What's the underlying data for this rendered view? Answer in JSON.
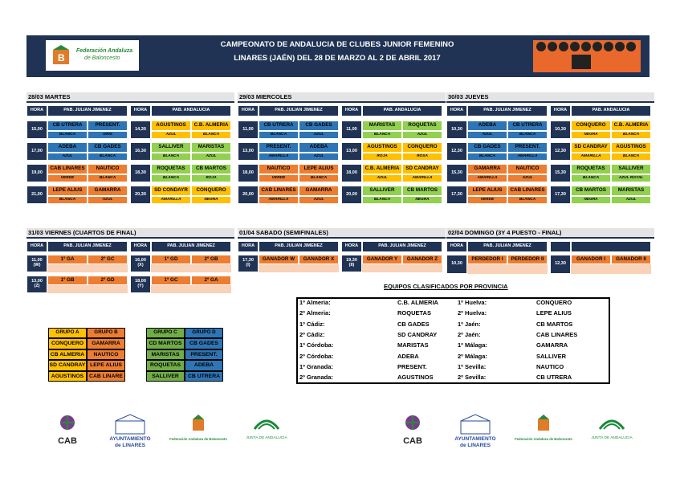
{
  "header": {
    "logo_lines": [
      "Federación Andaluza",
      "de Baloncesto"
    ],
    "title_lines": [
      "CAMPEONATO DE ANDALUCIA DE CLUBES JUNIOR FEMENINO",
      "LINARES (JAÉN) DEL 28 DE MARZO AL 2 DE ABRIL 2017"
    ]
  },
  "days": [
    {
      "label": "28/03 MARTES",
      "headers": [
        "HORA",
        "PAB. JULIAN JIMENEZ",
        "HORA",
        "PAB. ANDALUCIA"
      ],
      "slots": [
        [
          {
            "time": "15,00",
            "home": "CB UTRERA",
            "away": "PRESENT.",
            "shirts": [
              "BLANCA",
              "GRIS"
            ],
            "color": "#2e75b6"
          },
          {
            "time": "14,30",
            "home": "AGUSTINOS",
            "away": "C.B. ALMERIA",
            "shirts": [
              "AZUL",
              "BLANCA"
            ],
            "color": "#ffc000"
          }
        ],
        [
          {
            "time": "17,00",
            "home": "ADEBA",
            "away": "CB GADES",
            "shirts": [
              "AZUL",
              "BLANCA"
            ],
            "color": "#2e75b6"
          },
          {
            "time": "16,30",
            "home": "SALLIVER",
            "away": "MARISTAS",
            "shirts": [
              "BLANCA",
              "AZUL"
            ],
            "color": "#92d050"
          }
        ],
        [
          {
            "time": "19,00",
            "home": "CAB LINARES",
            "away": "NAUTICO",
            "shirts": [
              "VERDE",
              "BLANCA"
            ],
            "color": "#ed7d31"
          },
          {
            "time": "18,30",
            "home": "ROQUETAS",
            "away": "CB MARTOS",
            "shirts": [
              "BLANCA",
              "ROJA"
            ],
            "color": "#92d050"
          }
        ],
        [
          {
            "time": "21,00",
            "home": "LEPE ALIUS",
            "away": "GAMARRA",
            "shirts": [
              "BLANCA",
              "AZUL"
            ],
            "color": "#ed7d31"
          },
          {
            "time": "20,30",
            "home": "SD CONDAYR",
            "away": "CONQUERO",
            "shirts": [
              "AMARILLA",
              "NEGRA"
            ],
            "color": "#ffc000"
          }
        ]
      ]
    },
    {
      "label": "29/03 MIERCOLES",
      "headers": [
        "HORA",
        "PAB. JULIAN JIMENEZ",
        "HORA",
        "PAB. ANDALUCIA"
      ],
      "slots": [
        [
          {
            "time": "11,00",
            "home": "CB UTRERA",
            "away": "CB GADES",
            "shirts": [
              "BLANCA",
              "AZUL"
            ],
            "color": "#2e75b6"
          },
          {
            "time": "11,00",
            "home": "MARISTAS",
            "away": "ROQUETAS",
            "shirts": [
              "BLANCA",
              "AZUL"
            ],
            "color": "#92d050"
          }
        ],
        [
          {
            "time": "13,00",
            "home": "PRESENT.",
            "away": "ADEBA",
            "shirts": [
              "AMARILLA",
              "AZUL"
            ],
            "color": "#2e75b6"
          },
          {
            "time": "13,00",
            "home": "AGUSTINOS",
            "away": "CONQUERO",
            "shirts": [
              "ROJA",
              "ROSA"
            ],
            "color": "#ffc000"
          }
        ],
        [
          {
            "time": "18,00",
            "home": "NAUTICO",
            "away": "LEPE ALIUS",
            "shirts": [
              "VERDE",
              "BLANCA"
            ],
            "color": "#ed7d31"
          },
          {
            "time": "18,00",
            "home": "C.B. ALMERIA",
            "away": "SD CANDRAY",
            "shirts": [
              "AZUL",
              "AMARILLA"
            ],
            "color": "#ffc000"
          }
        ],
        [
          {
            "time": "20,00",
            "home": "CAB LINARES",
            "away": "GAMARRA",
            "shirts": [
              "AMARILLA",
              "AZUL"
            ],
            "color": "#ed7d31"
          },
          {
            "time": "20,00",
            "home": "SALLIVER",
            "away": "CB MARTOS",
            "shirts": [
              "BLANCA",
              "NEGRA"
            ],
            "color": "#92d050"
          }
        ]
      ]
    },
    {
      "label": "30/03 JUEVES",
      "headers": [
        "HORA",
        "PAB. JULIAN JIMENEZ",
        "HORA",
        "PAB. ANDALUCIA"
      ],
      "slots": [
        [
          {
            "time": "10,30",
            "home": "ADEBA",
            "away": "CB UTRERA",
            "shirts": [
              "AZUL",
              "BLANCA"
            ],
            "color": "#2e75b6"
          },
          {
            "time": "10,30",
            "home": "CONQUERO",
            "away": "C.B. ALMERIA",
            "shirts": [
              "NEGRA",
              "BLANCA"
            ],
            "color": "#ffc000"
          }
        ],
        [
          {
            "time": "12,30",
            "home": "CB GADES",
            "away": "PRESENT.",
            "shirts": [
              "BLANCA",
              "AMARILLA"
            ],
            "color": "#2e75b6"
          },
          {
            "time": "12,30",
            "home": "SD CANDRAY",
            "away": "AGUSTINOS",
            "shirts": [
              "AMARILLA",
              "BLANCA"
            ],
            "color": "#ffc000"
          }
        ],
        [
          {
            "time": "15,30",
            "home": "GAMARRA",
            "away": "NAUTICO",
            "shirts": [
              "AMARILLA",
              "AZUL"
            ],
            "color": "#ed7d31"
          },
          {
            "time": "15,30",
            "home": "ROQUETAS",
            "away": "SALLIVER",
            "shirts": [
              "BLANCA",
              "AZUL ROYAL"
            ],
            "color": "#92d050"
          }
        ],
        [
          {
            "time": "17,30",
            "home": "LEPE ALIUS",
            "away": "CAB LINARES",
            "shirts": [
              "VERDE",
              "BLANCA"
            ],
            "color": "#ed7d31"
          },
          {
            "time": "17,30",
            "home": "CB MARTOS",
            "away": "MARISTAS",
            "shirts": [
              "NEGRA",
              "AZUL"
            ],
            "color": "#92d050"
          }
        ]
      ]
    }
  ],
  "knockout": [
    {
      "label": "31/03 VIERNES (CUARTOS DE FINAL)",
      "headers": [
        "HORA",
        "PAB. JULIAN JIMENEZ",
        "HORA",
        "PAB. JULIAN JIMENEZ"
      ],
      "slots": [
        [
          {
            "time": "11,00",
            "note": "(W)",
            "home": "1º GA",
            "away": "2º GC",
            "color": "#ed7d31"
          },
          {
            "time": "16,00",
            "note": "(X)",
            "home": "1º GD",
            "away": "2º GB",
            "color": "#ed7d31"
          }
        ],
        [
          {
            "time": "13,00",
            "note": "(Z)",
            "home": "1º GB",
            "away": "2º GD",
            "color": "#ed7d31"
          },
          {
            "time": "18,00",
            "note": "(Y)",
            "home": "1º GC",
            "away": "2º GA",
            "color": "#ed7d31"
          }
        ]
      ]
    },
    {
      "label": "01/04 SABADO (SEMIFINALES)",
      "headers": [
        "HORA",
        "PAB. JULIAN JIMENEZ",
        "HORA",
        "PAB. JULIAN JIMENEZ"
      ],
      "slots": [
        [
          {
            "time": "17,30",
            "note": "(I)",
            "home": "GANADOR W",
            "away": "GANADOR X",
            "color": "#ed7d31"
          },
          {
            "time": "19,30",
            "note": "(II)",
            "home": "GANADOR Y",
            "away": "GANADOR Z",
            "color": "#ed7d31"
          }
        ]
      ]
    },
    {
      "label": "02/04 DOMINGO (3Y 4 PUESTO - FINAL)",
      "headers": [
        "HORA",
        "PAB. JULIAN JIMENEZ"
      ],
      "slots": [
        [
          {
            "time": "10,30",
            "home": "PERDEDOR I",
            "away": "PERDEDOR II",
            "color": "#ed7d31"
          },
          {
            "time": "12,30",
            "home": "GANADOR I",
            "away": "GANADOR II",
            "color": "#ed7d31"
          }
        ]
      ]
    }
  ],
  "groups": [
    {
      "name": "GRUPO A",
      "color": "#ffc000",
      "teams": [
        "CONQUERO",
        "CB ALMERIA",
        "SD CANDRAY",
        "AGUSTINOS"
      ]
    },
    {
      "name": "GRUPO B",
      "color": "#ed7d31",
      "teams": [
        "GAMARRA",
        "NAUTICO",
        "LEPE ALIUS",
        "CAB LINARE"
      ]
    },
    {
      "name": "GRUPO C",
      "color": "#70ad47",
      "teams": [
        "CD MARTOS",
        "MARISTAS",
        "ROQUETAS",
        "SALLIVER"
      ]
    },
    {
      "name": "GRUPO D",
      "color": "#2e75b6",
      "teams": [
        "CB GADES",
        "PRESENT.",
        "ADEBA",
        "CB UTRERA"
      ]
    }
  ],
  "classified": {
    "title": "EQUIPOS CLASIFICADOS POR PROVINCIA",
    "rows": [
      [
        "1º Almeria:",
        "C.B. ALMERIA",
        "1º Huelva:",
        "CONQUERO"
      ],
      [
        "2º Almeria:",
        "ROQUETAS",
        "2º Huelva:",
        "LEPE ALIUS"
      ],
      [
        "1º Cádiz:",
        "CB GADES",
        "1º Jaén:",
        "CB MARTOS"
      ],
      [
        "2º Cádiz:",
        "SD CANDRAY",
        "2º Jaén:",
        "CAB LINARES"
      ],
      [
        "1º Córdoba:",
        "MARISTAS",
        "1º Málaga:",
        "GAMARRA"
      ],
      [
        "2º Córdoba:",
        "ADEBA",
        "2º Málaga:",
        "SALLIVER"
      ],
      [
        "1º Granada:",
        "PRESENT.",
        "1º Sevilla:",
        "NAUTICO"
      ],
      [
        "2º Granada:",
        "AGUSTINOS",
        "2º Sevilla:",
        "CB UTRERA"
      ]
    ]
  },
  "footer": {
    "cab": "CAB",
    "ayto": [
      "AYUNTAMIENTO",
      "de LINARES"
    ],
    "fab": "Federación Andaluza de Baloncesto",
    "junta": "JUNTA DE ANDALUCIA"
  }
}
